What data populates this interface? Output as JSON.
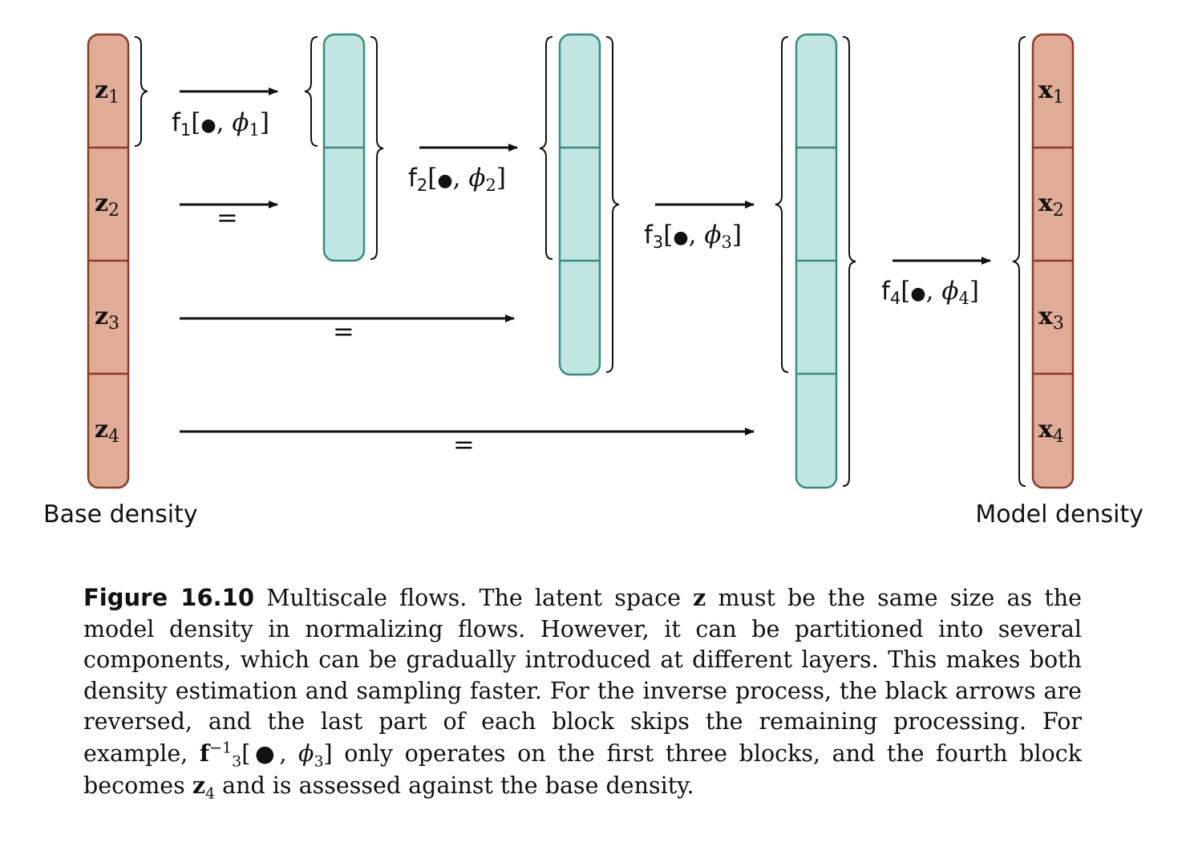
{
  "colors": {
    "latent_fill": "#e0ab97",
    "latent_stroke": "#8a3c28",
    "hidden_fill": "#c1e6e2",
    "hidden_stroke": "#3b8a81",
    "ink": "#111111"
  },
  "base_column": {
    "caption": "Base density",
    "cells": [
      {
        "sym": "z",
        "idx": "1"
      },
      {
        "sym": "z",
        "idx": "2"
      },
      {
        "sym": "z",
        "idx": "3"
      },
      {
        "sym": "z",
        "idx": "4"
      }
    ]
  },
  "model_column": {
    "caption": "Model density",
    "cells": [
      {
        "sym": "x",
        "idx": "1"
      },
      {
        "sym": "x",
        "idx": "2"
      },
      {
        "sym": "x",
        "idx": "3"
      },
      {
        "sym": "x",
        "idx": "4"
      }
    ]
  },
  "hidden_columns": [
    {
      "blocks": 2
    },
    {
      "blocks": 3
    },
    {
      "blocks": 4
    }
  ],
  "flow_labels": [
    {
      "f": "f",
      "idx": "1",
      "phi": "ϕ",
      "bullet": "●"
    },
    {
      "f": "f",
      "idx": "2",
      "phi": "ϕ",
      "bullet": "●"
    },
    {
      "f": "f",
      "idx": "3",
      "phi": "ϕ",
      "bullet": "●"
    },
    {
      "f": "f",
      "idx": "4",
      "phi": "ϕ",
      "bullet": "●"
    }
  ],
  "identity_symbol": "=",
  "caption": {
    "label": "Figure 16.10",
    "part1": " Multiscale flows.  The latent space ",
    "z_symbol": "z",
    "part2": " must be the same size as the model density in normalizing flows.  However, it can be partitioned into several components, which can be gradually introduced at different layers.  This makes both density estimation and sampling faster.  For the inverse process, the black arrows are reversed, and the last part of each block skips the remaining processing.  For example, ",
    "f_inv": "f",
    "f_inv_sub": "3",
    "f_inv_sup": "−1",
    "f_inv_args_open": "[●, ",
    "f_inv_phi": "ϕ",
    "f_inv_phi_sub": "3",
    "f_inv_args_close": "]",
    "part3": " only operates on the first three blocks, and the fourth block becomes ",
    "z4_sym": "z",
    "z4_sub": "4",
    "part4": " and is assessed against the base density."
  }
}
